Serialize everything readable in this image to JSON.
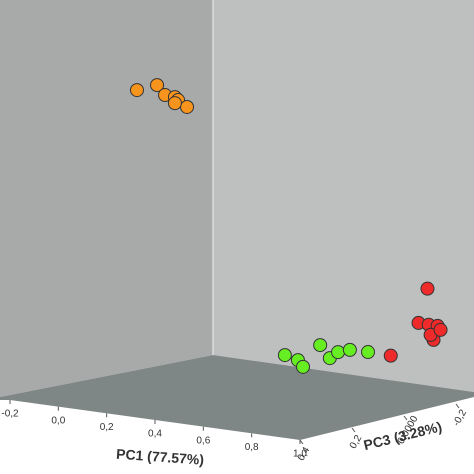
{
  "chart_data": {
    "type": "scatter3d",
    "xlabel": "PC1 (77.57%)",
    "zlabel": "PC3 (3.28%)",
    "xlim": [
      -0.2,
      1.0
    ],
    "xticks": [
      {
        "value": -0.2,
        "label": "-0,2"
      },
      {
        "value": 0.0,
        "label": "0,0"
      },
      {
        "value": 0.2,
        "label": "0,2"
      },
      {
        "value": 0.4,
        "label": "0,4"
      },
      {
        "value": 0.6,
        "label": "0,6"
      },
      {
        "value": 0.8,
        "label": "0,8"
      },
      {
        "value": 1.0,
        "label": "1,0"
      }
    ],
    "zlim": [
      0.4,
      -0.35
    ],
    "zticks": [
      {
        "value": 0.4,
        "label": "0,4"
      },
      {
        "value": 0.2,
        "label": "0,2"
      },
      {
        "value": 0.0,
        "label": "0,0000"
      },
      {
        "value": -0.2,
        "label": "-0,2"
      }
    ],
    "ylim": [
      0,
      1
    ],
    "series": [
      {
        "color": "#f7941d",
        "x": [
          -0.078,
          0.005,
          0.038,
          0.079,
          0.092,
          0.129,
          0.079
        ],
        "y": [
          0.821,
          0.843,
          0.818,
          0.816,
          0.809,
          0.793,
          0.799
        ],
        "z": [
          0.025,
          0.025,
          0.025,
          0.025,
          0.025,
          0.025,
          0.025
        ]
      },
      {
        "color": "#66ee22",
        "x": [
          0.534,
          0.588,
          0.609,
          0.68,
          0.72,
          0.754,
          0.803,
          0.878
        ],
        "y": [
          0.132,
          0.123,
          0.106,
          0.174,
          0.141,
          0.161,
          0.172,
          0.173
        ],
        "z": [
          0.025,
          0.025,
          0.025,
          0.025,
          0.025,
          0.025,
          0.025,
          0.025
        ]
      },
      {
        "color": "#ee2a2a",
        "x": [
          0.839,
          0.802,
          0.844,
          0.881,
          0.864,
          0.852,
          0.893,
          0.687
        ],
        "y": [
          0.303,
          0.203,
          0.202,
          0.202,
          0.161,
          0.174,
          0.192,
          0.1
        ],
        "z": [
          -0.24,
          -0.24,
          -0.24,
          -0.24,
          -0.24,
          -0.24,
          -0.24,
          -0.24
        ]
      }
    ]
  }
}
